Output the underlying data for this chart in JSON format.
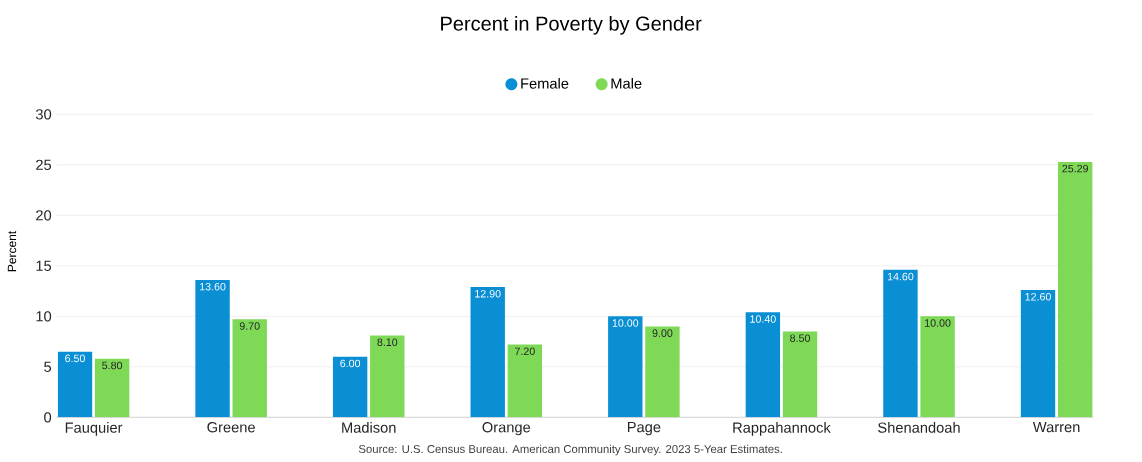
{
  "chart_data": {
    "type": "bar",
    "title": "Percent in Poverty by Gender",
    "ylabel": "Percent",
    "categories": [
      "Fauquier",
      "Greene",
      "Madison",
      "Orange",
      "Page",
      "Rappahannock",
      "Shenandoah",
      "Warren"
    ],
    "series": [
      {
        "name": "Female",
        "color": "#0a8fd4",
        "values": [
          6.5,
          13.6,
          6.0,
          12.9,
          10.0,
          10.4,
          14.6,
          12.6
        ],
        "value_labels": [
          "6.50",
          "13.60",
          "6.00",
          "12.90",
          "10.00",
          "10.40",
          "14.60",
          "12.60"
        ]
      },
      {
        "name": "Male",
        "color": "#7ed957",
        "values": [
          5.8,
          9.7,
          8.1,
          7.2,
          9.0,
          8.5,
          10.0,
          25.29
        ],
        "value_labels": [
          "5.80",
          "9.70",
          "8.10",
          "7.20",
          "9.00",
          "8.50",
          "10.00",
          "25.29"
        ]
      }
    ],
    "ylim": [
      0,
      30
    ],
    "yticks": [
      0,
      5,
      10,
      15,
      20,
      25,
      30
    ],
    "grid": "y",
    "legend": "top",
    "annotations": [
      "Source: U.S. Census Bureau. American Community Survey. 2023 5-Year Estimates."
    ]
  }
}
